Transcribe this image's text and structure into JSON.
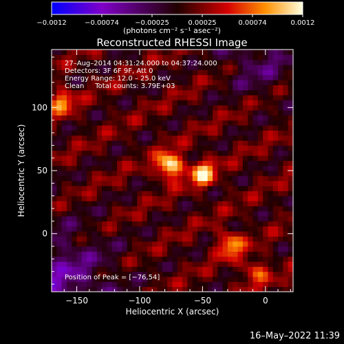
{
  "chart_data": {
    "type": "heatmap",
    "title": "Reconstructed RHESSI Image",
    "xlabel": "Heliocentric X (arcsec)",
    "ylabel": "Heliocentric Y (arcsec)",
    "xlim": [
      -170,
      22
    ],
    "ylim": [
      -46,
      146
    ],
    "x_ticks": [
      -150,
      -100,
      -50,
      0
    ],
    "y_ticks": [
      0,
      50,
      100
    ],
    "colorbar": {
      "label": "(photons cm⁻² s⁻¹ asec⁻²)",
      "range": [
        -0.0012,
        0.0012
      ],
      "tick_labels": [
        "−0.0012",
        "−0.00074",
        "−0.00025",
        "0.00025",
        "0.00074",
        "0.0012"
      ]
    },
    "annotations": [
      "27–Aug–2014 04:31:24.000 to 04:37:24.000",
      "Detectors: 3F 6F 9F, Att 0",
      "Energy Range: 12.0 – 25.0 keV",
      "Clean     Total counts: 3.79E+03"
    ],
    "peak_label": "Position of Peak = [−76,54]",
    "sources": [
      {
        "x": -76,
        "y": 54,
        "peak": 0.0012
      },
      {
        "x": -50,
        "y": 48,
        "peak": 0.00095
      },
      {
        "x": -28,
        "y": -8,
        "peak": 0.0008
      },
      {
        "x": -162,
        "y": 105,
        "peak": 0.0007
      },
      {
        "x": -8,
        "y": -30,
        "peak": 0.0006
      }
    ]
  },
  "footer": {
    "timestamp": "16–May–2022 11:39"
  }
}
